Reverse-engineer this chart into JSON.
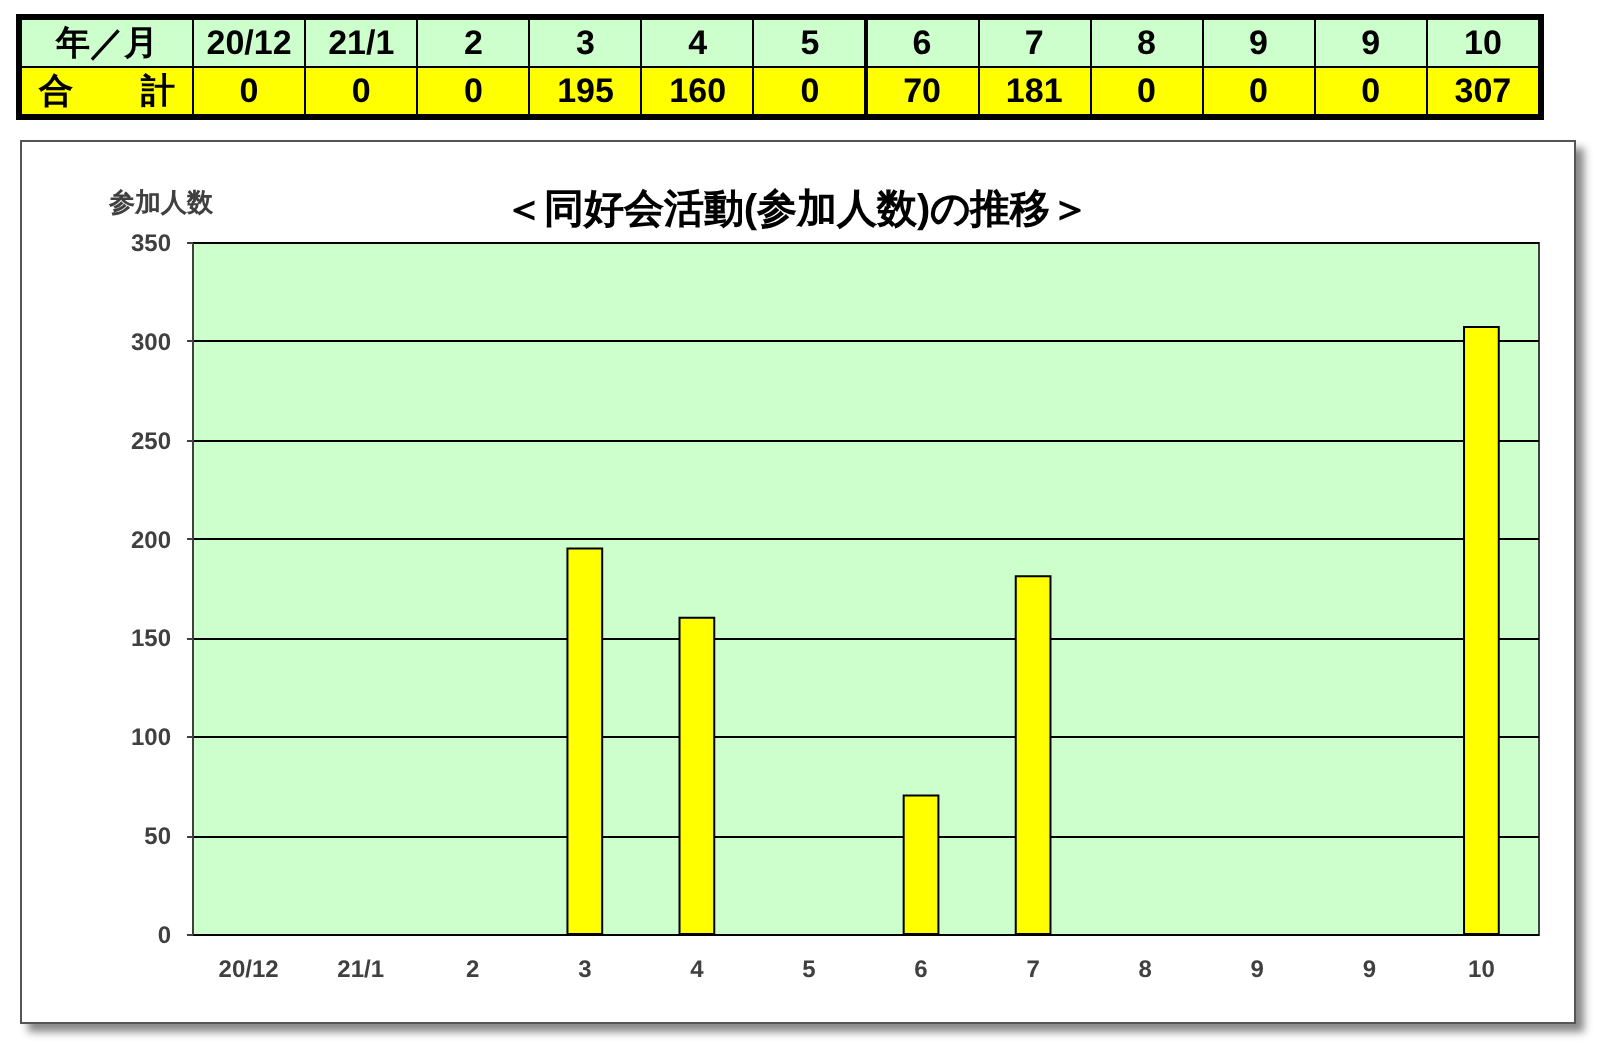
{
  "chart_data": {
    "type": "bar",
    "title": "＜同好会活動(参加人数)の推移＞",
    "xlabel": "年／月",
    "ylabel": "参加人数",
    "categories": [
      "20/12",
      "21/1",
      "2",
      "3",
      "4",
      "5",
      "6",
      "7",
      "8",
      "9",
      "9",
      "10"
    ],
    "series": [
      {
        "name": "合　　計",
        "color": "#ffff00",
        "values": [
          0,
          0,
          0,
          195,
          160,
          0,
          70,
          181,
          0,
          0,
          0,
          307
        ]
      }
    ],
    "ylim": [
      0,
      350
    ],
    "yticks": [
      0,
      50,
      100,
      150,
      200,
      250,
      300,
      350
    ],
    "grid": "y",
    "data_labels": true
  }
}
